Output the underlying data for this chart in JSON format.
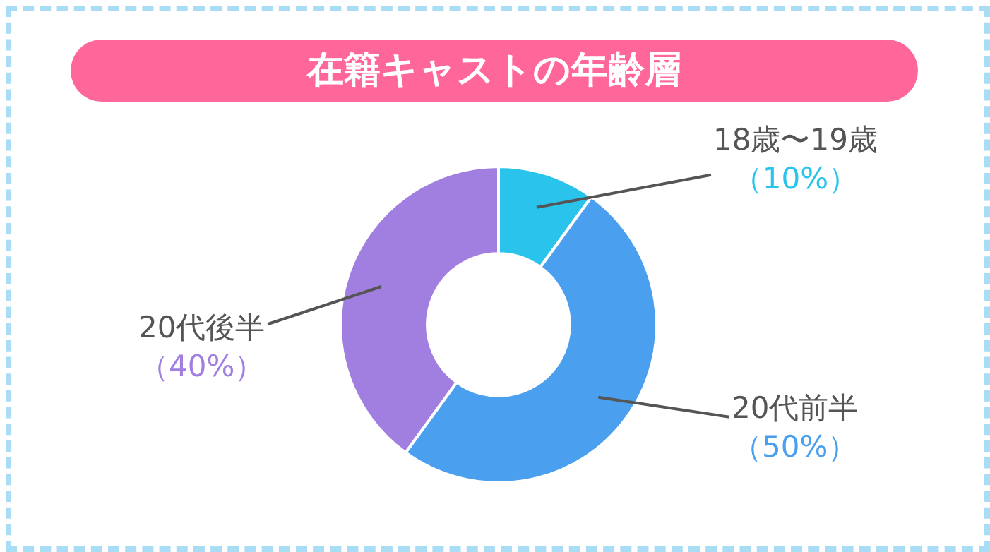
{
  "chart_data": {
    "type": "donut",
    "title": "在籍キャストの年齢層",
    "categories": [
      "18歳〜19歳",
      "20代前半",
      "20代後半"
    ],
    "values": [
      10,
      50,
      40
    ],
    "colors": [
      "#29c3ec",
      "#4a9fef",
      "#a07fe0"
    ],
    "value_labels": [
      "（10%）",
      "（50%）",
      "（40%）"
    ]
  }
}
